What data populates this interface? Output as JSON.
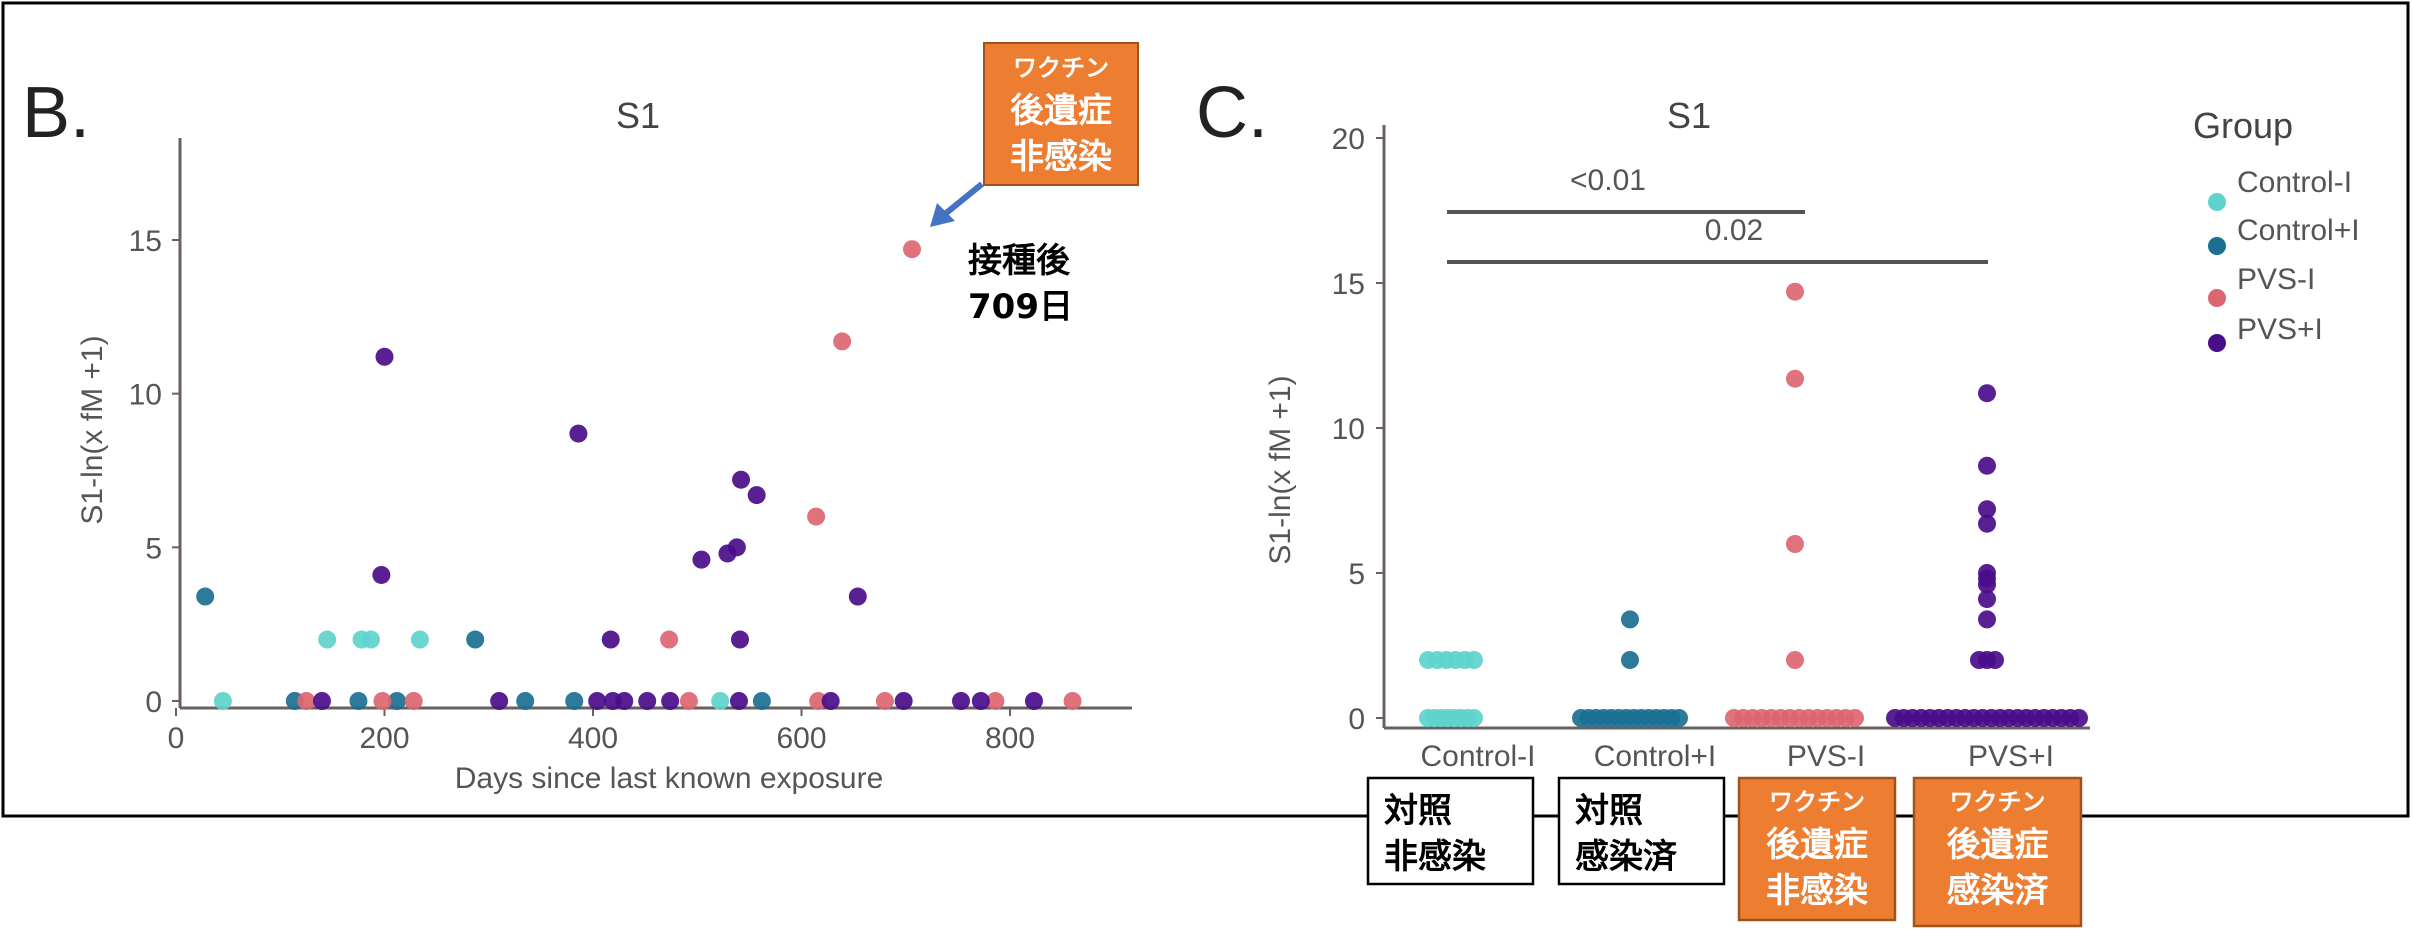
{
  "colors": {
    "Control-I": "#5ed3cc",
    "Control+I": "#1b6f92",
    "PVS-I": "#dc6670",
    "PVS+I": "#4a0d8a",
    "annotation_box": "#ed7d31",
    "arrow": "#4472c4"
  },
  "panel_b": {
    "panel_letter": "B.",
    "annotation": {
      "line1": "ワクチン",
      "line2": "後遺症",
      "line3": "非感染",
      "note1": "接種後",
      "note2": "709日"
    }
  },
  "panel_c": {
    "panel_letter": "C.",
    "significance": [
      {
        "label": "<0.01",
        "from": "Control-I",
        "to": "PVS-I"
      },
      {
        "label": "0.02",
        "from": "Control-I",
        "to": "PVS+I"
      }
    ],
    "category_boxes": [
      {
        "line1": "対照",
        "line2": "非感染"
      },
      {
        "line1": "対照",
        "line2": "感染済"
      },
      {
        "line0": "ワクチン",
        "line1": "後遺症",
        "line2": "非感染"
      },
      {
        "line0": "ワクチン",
        "line1": "後遺症",
        "line2": "感染済"
      }
    ]
  },
  "chart_data": [
    {
      "type": "scatter",
      "title": "S1",
      "xlabel": "Days since last known exposure",
      "ylabel": "S1-ln(x fM +1)",
      "xlim": [
        0,
        915
      ],
      "ylim": [
        0,
        17.5
      ],
      "xticks": [
        "0",
        "200",
        "400",
        "600",
        "800"
      ],
      "yticks": [
        "0",
        "5",
        "10",
        "15"
      ],
      "series": [
        {
          "name": "Control-I",
          "points": [
            [
              45,
              0
            ],
            [
              145,
              2
            ],
            [
              178,
              2
            ],
            [
              187,
              2
            ],
            [
              234,
              2
            ],
            [
              522,
              0
            ]
          ]
        },
        {
          "name": "Control+I",
          "points": [
            [
              28,
              3.4
            ],
            [
              287,
              2
            ],
            [
              114,
              0
            ],
            [
              175,
              0
            ],
            [
              212,
              0
            ],
            [
              335,
              0
            ],
            [
              382,
              0
            ],
            [
              562,
              0
            ]
          ]
        },
        {
          "name": "PVS-I",
          "points": [
            [
              706,
              14.7
            ],
            [
              639,
              11.7
            ],
            [
              614,
              6.0
            ],
            [
              473,
              2
            ],
            [
              125,
              0
            ],
            [
              198,
              0
            ],
            [
              228,
              0
            ],
            [
              492,
              0
            ],
            [
              616,
              0
            ],
            [
              680,
              0
            ],
            [
              786,
              0
            ],
            [
              860,
              0
            ]
          ]
        },
        {
          "name": "PVS+I",
          "points": [
            [
              200,
              11.2
            ],
            [
              197,
              4.1
            ],
            [
              386,
              8.7
            ],
            [
              417,
              2
            ],
            [
              504,
              4.6
            ],
            [
              529,
              4.8
            ],
            [
              538,
              5.0
            ],
            [
              542,
              7.2
            ],
            [
              557,
              6.7
            ],
            [
              541,
              2
            ],
            [
              654,
              3.4
            ],
            [
              140,
              0
            ],
            [
              310,
              0
            ],
            [
              404,
              0
            ],
            [
              419,
              0
            ],
            [
              430,
              0
            ],
            [
              452,
              0
            ],
            [
              474,
              0
            ],
            [
              540,
              0
            ],
            [
              628,
              0
            ],
            [
              698,
              0
            ],
            [
              753,
              0
            ],
            [
              772,
              0
            ],
            [
              823,
              0
            ]
          ]
        }
      ]
    },
    {
      "type": "scatter",
      "title": "S1",
      "xlabel": "",
      "ylabel": "S1-ln(x fM +1)",
      "ylim": [
        0,
        20
      ],
      "yticks": [
        "0",
        "5",
        "10",
        "15",
        "20"
      ],
      "categories": [
        "Control-I",
        "Control+I",
        "PVS-I",
        "PVS+I"
      ],
      "legend_title": "Group",
      "legend_position": "right",
      "series": [
        {
          "name": "Control-I",
          "values": [
            2,
            2,
            2,
            2,
            2,
            2,
            0,
            0,
            0,
            0,
            0,
            0,
            0,
            0
          ]
        },
        {
          "name": "Control+I",
          "values": [
            3.4,
            2,
            0,
            0,
            0,
            0,
            0,
            0,
            0,
            0,
            0,
            0,
            0,
            0,
            0,
            0
          ]
        },
        {
          "name": "PVS-I",
          "values": [
            14.7,
            11.7,
            6.0,
            2,
            0,
            0,
            0,
            0,
            0,
            0,
            0,
            0,
            0,
            0,
            0,
            0,
            0,
            0
          ]
        },
        {
          "name": "PVS+I",
          "values": [
            11.2,
            8.7,
            7.2,
            6.7,
            5.0,
            4.8,
            4.6,
            4.1,
            3.4,
            2,
            2,
            2,
            0,
            0,
            0,
            0,
            0,
            0,
            0,
            0,
            0,
            0,
            0,
            0,
            0,
            0,
            0,
            0,
            0,
            0,
            0,
            0,
            0,
            0
          ]
        }
      ]
    }
  ]
}
